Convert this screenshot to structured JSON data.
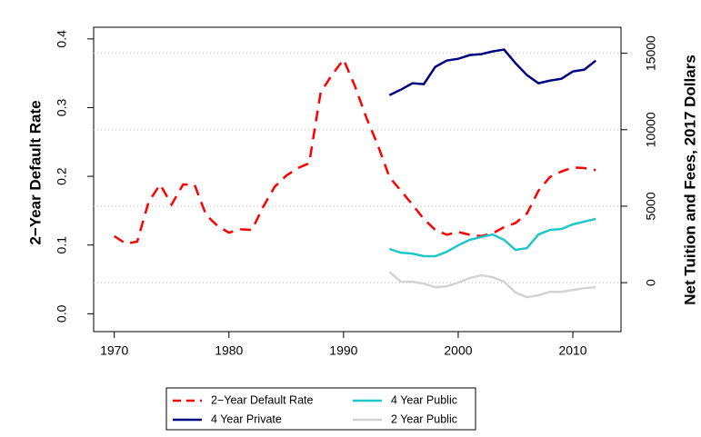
{
  "chart_data": {
    "type": "line",
    "ylabel": "2−Year Default Rate",
    "y2label": "Net Tuition and Fees, 2017 Dollars",
    "x": [
      1970,
      1971,
      1972,
      1973,
      1974,
      1975,
      1976,
      1977,
      1978,
      1979,
      1980,
      1981,
      1982,
      1983,
      1984,
      1985,
      1986,
      1987,
      1988,
      1989,
      1990,
      1991,
      1992,
      1993,
      1994,
      1995,
      1996,
      1997,
      1998,
      1999,
      2000,
      2001,
      2002,
      2003,
      2004,
      2005,
      2006,
      2007,
      2008,
      2009,
      2010,
      2011,
      2012
    ],
    "xlim": [
      1968.2,
      2014.2
    ],
    "xticks": [
      1970,
      1980,
      1990,
      2000,
      2010
    ],
    "ylim": [
      -0.026,
      0.417
    ],
    "yticks": [
      {
        "value": 0,
        "label": "0.0"
      },
      0.1,
      0.2,
      0.3,
      0.4
    ],
    "y2lim": [
      -3200,
      16700
    ],
    "y2ticks": [
      0,
      5000,
      10000,
      15000
    ],
    "grid": "y2",
    "legend": "bottom",
    "series": [
      {
        "name": "2−Year Default Rate",
        "color": "#ff0000",
        "dash": "dashed",
        "axis": "y",
        "values": [
          0.113,
          0.102,
          0.105,
          0.163,
          0.188,
          0.159,
          0.188,
          0.188,
          0.144,
          0.128,
          0.118,
          0.123,
          0.122,
          0.156,
          0.185,
          0.201,
          0.212,
          0.219,
          0.322,
          0.348,
          0.37,
          0.331,
          0.285,
          0.245,
          0.199,
          0.179,
          0.159,
          0.138,
          0.122,
          0.115,
          0.119,
          0.115,
          0.113,
          0.117,
          0.126,
          0.132,
          0.146,
          0.179,
          0.199,
          0.207,
          0.213,
          0.212,
          0.209
        ]
      },
      {
        "name": "4 Year Public",
        "color": "#1ec8c8",
        "axis": "y2",
        "values": [
          null,
          null,
          null,
          null,
          null,
          null,
          null,
          null,
          null,
          null,
          null,
          null,
          null,
          null,
          null,
          null,
          null,
          null,
          null,
          null,
          null,
          null,
          null,
          null,
          2200,
          1960,
          1900,
          1730,
          1730,
          2020,
          2440,
          2800,
          2980,
          3150,
          2800,
          2140,
          2260,
          3150,
          3450,
          3510,
          3810,
          3990,
          4170
        ]
      },
      {
        "name": "4 Year Private",
        "color": "#000080",
        "axis": "y2",
        "values": [
          null,
          null,
          null,
          null,
          null,
          null,
          null,
          null,
          null,
          null,
          null,
          null,
          null,
          null,
          null,
          null,
          null,
          null,
          null,
          null,
          null,
          null,
          null,
          null,
          12260,
          12620,
          13040,
          12980,
          14110,
          14520,
          14640,
          14880,
          14940,
          15120,
          15240,
          14350,
          13570,
          13040,
          13210,
          13330,
          13810,
          13930,
          14520
        ]
      },
      {
        "name": "2 Year Public",
        "color": "#d3d3d3",
        "axis": "y2",
        "values": [
          null,
          null,
          null,
          null,
          null,
          null,
          null,
          null,
          null,
          null,
          null,
          null,
          null,
          null,
          null,
          null,
          null,
          null,
          null,
          null,
          null,
          null,
          null,
          null,
          710,
          60,
          60,
          -60,
          -300,
          -240,
          0,
          300,
          480,
          360,
          60,
          -650,
          -950,
          -830,
          -600,
          -600,
          -480,
          -360,
          -300
        ]
      }
    ]
  }
}
